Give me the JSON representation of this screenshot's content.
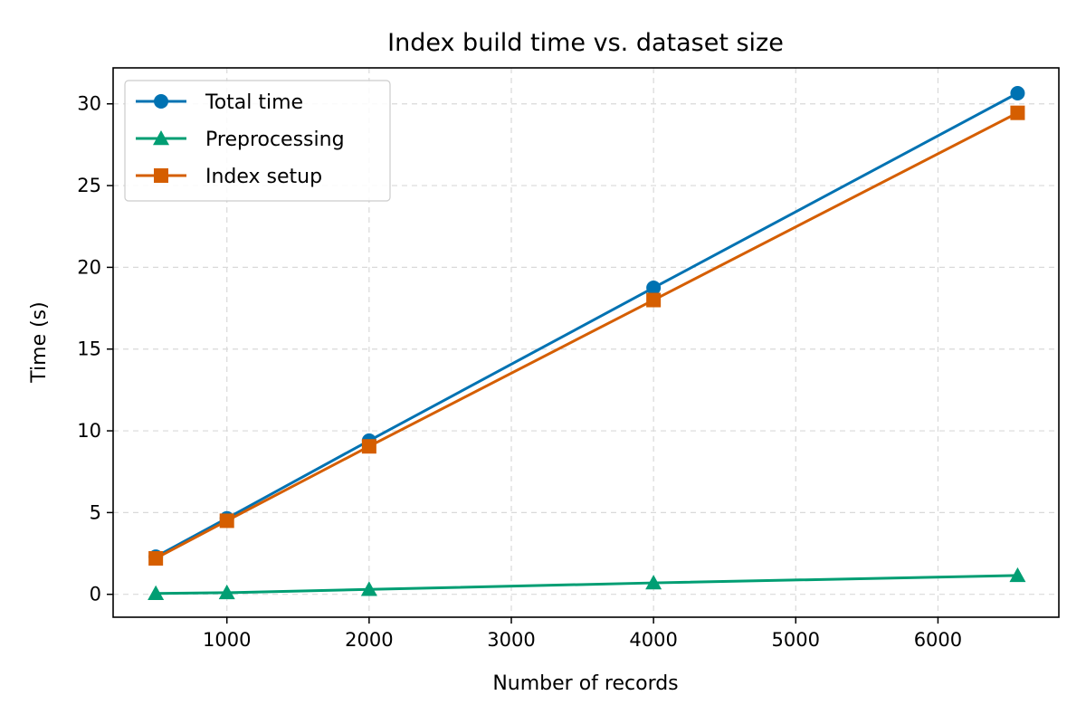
{
  "chart_data": {
    "type": "line",
    "title": "Index build time vs. dataset size",
    "xlabel": "Number of records",
    "ylabel": "Time (s)",
    "xlim": [
      200,
      6850
    ],
    "ylim": [
      -1.4,
      32.2
    ],
    "xticks": [
      1000,
      2000,
      3000,
      4000,
      5000,
      6000
    ],
    "yticks": [
      0,
      5,
      10,
      15,
      20,
      25,
      30
    ],
    "grid": true,
    "legend_position": "top-left",
    "x": [
      500,
      1000,
      2000,
      4000,
      6560
    ],
    "series": [
      {
        "name": "Total time",
        "values": [
          2.3,
          4.65,
          9.4,
          18.75,
          30.65
        ],
        "color": "#0072b2",
        "marker": "circle"
      },
      {
        "name": "Preprocessing",
        "values": [
          0.05,
          0.1,
          0.3,
          0.7,
          1.15
        ],
        "color": "#009e73",
        "marker": "triangle"
      },
      {
        "name": "Index setup",
        "values": [
          2.2,
          4.5,
          9.05,
          18.0,
          29.45
        ],
        "color": "#d55e00",
        "marker": "square"
      }
    ]
  }
}
